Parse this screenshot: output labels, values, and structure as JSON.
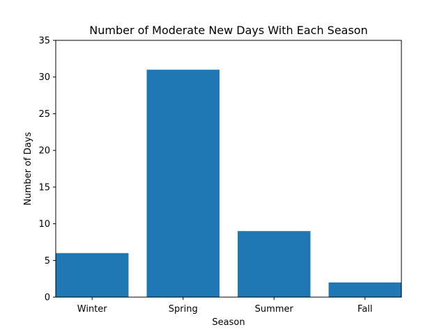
{
  "chart_data": {
    "type": "bar",
    "title": "Number of Moderate New Days With Each Season",
    "xlabel": "Season",
    "ylabel": "Number of Days",
    "categories": [
      "Winter",
      "Spring",
      "Summer",
      "Fall"
    ],
    "values": [
      6,
      31,
      9,
      2
    ],
    "ylim": [
      0,
      35
    ],
    "yticks": [
      0,
      5,
      10,
      15,
      20,
      25,
      30,
      35
    ],
    "bar_color": "#1f77b4",
    "grid": false,
    "legend": "none"
  }
}
